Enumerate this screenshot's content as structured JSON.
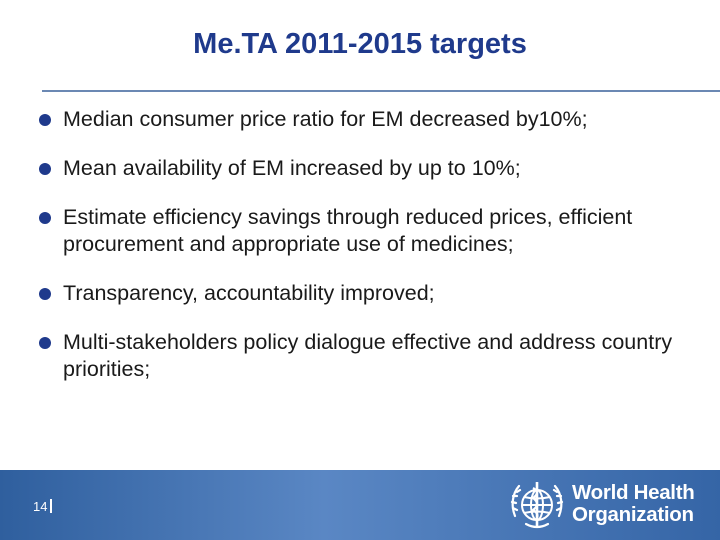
{
  "slide": {
    "title": "Me.TA 2011-2015 targets",
    "bullets": [
      {
        "text": "Median consumer price ratio for EM decreased by10%;"
      },
      {
        "text": "Mean availability of EM increased by up to 10%;"
      },
      {
        "text": "Estimate efficiency savings through reduced prices, efficient procurement and appropriate use of medicines;"
      },
      {
        "text": "Transparency, accountability improved;"
      },
      {
        "text": "Multi-stakeholders policy dialogue effective and address country priorities;"
      }
    ]
  },
  "footer": {
    "page_number": "14",
    "logo_line1": "World Health",
    "logo_line2": "Organization",
    "logo_icon": "who-emblem-icon",
    "bar_color": "#3a6aa8"
  },
  "colors": {
    "title": "#1f3a8c",
    "bullet": "#1f3a8c",
    "text": "#1a1a1a"
  }
}
